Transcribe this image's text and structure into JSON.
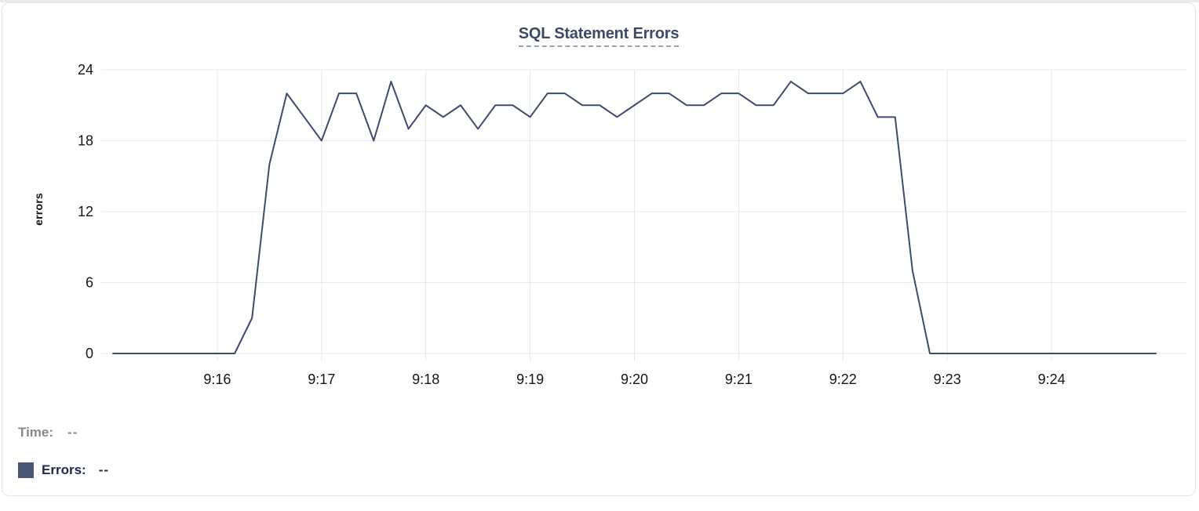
{
  "page": {
    "top_strip_color": "#e9ebee",
    "background": "#ffffff"
  },
  "card": {
    "background": "#ffffff",
    "border_color": "#e2e4e8"
  },
  "header": {
    "title": "SQL Statement Errors",
    "title_color": "#3c4a66",
    "underline_color": "#99a2bb"
  },
  "readout": {
    "time_label": "Time:",
    "time_value": "--",
    "time_color": "#85888d",
    "errors_label": "Errors:",
    "errors_value": "--",
    "errors_color": "#1e2847",
    "swatch_color": "#485571"
  },
  "chart_data": {
    "type": "line",
    "title": "SQL Statement Errors",
    "xlabel": "",
    "ylabel": "errors",
    "ylim": [
      0,
      24
    ],
    "yticks": [
      0,
      6,
      12,
      18,
      24
    ],
    "grid": true,
    "legend_position": "none",
    "line_color": "#3e4c6b",
    "gridline_color": "#e8e8e8",
    "tick_text_color": "#161616",
    "x_start": "9:15:00",
    "x_end": "9:25:00",
    "sample_interval_seconds": 10,
    "xtick_labels": [
      "9:16",
      "9:17",
      "9:18",
      "9:19",
      "9:20",
      "9:21",
      "9:22",
      "9:23",
      "9:24"
    ],
    "series": [
      {
        "name": "Errors",
        "times": [
          "9:15:00",
          "9:15:10",
          "9:15:20",
          "9:15:30",
          "9:15:40",
          "9:15:50",
          "9:16:00",
          "9:16:10",
          "9:16:20",
          "9:16:30",
          "9:16:40",
          "9:16:50",
          "9:17:00",
          "9:17:10",
          "9:17:20",
          "9:17:30",
          "9:17:40",
          "9:17:50",
          "9:18:00",
          "9:18:10",
          "9:18:20",
          "9:18:30",
          "9:18:40",
          "9:18:50",
          "9:19:00",
          "9:19:10",
          "9:19:20",
          "9:19:30",
          "9:19:40",
          "9:19:50",
          "9:20:00",
          "9:20:10",
          "9:20:20",
          "9:20:30",
          "9:20:40",
          "9:20:50",
          "9:21:00",
          "9:21:10",
          "9:21:20",
          "9:21:30",
          "9:21:40",
          "9:21:50",
          "9:22:00",
          "9:22:10",
          "9:22:20",
          "9:22:30",
          "9:22:40",
          "9:22:50",
          "9:23:00",
          "9:23:10",
          "9:23:20",
          "9:23:30",
          "9:23:40",
          "9:23:50",
          "9:24:00",
          "9:24:10",
          "9:24:20",
          "9:24:30",
          "9:24:40",
          "9:24:50",
          "9:25:00"
        ],
        "values": [
          0,
          0,
          0,
          0,
          0,
          0,
          0,
          0,
          3,
          16,
          22,
          20,
          18,
          22,
          22,
          18,
          23,
          19,
          21,
          20,
          21,
          19,
          21,
          21,
          20,
          22,
          22,
          21,
          21,
          20,
          21,
          22,
          22,
          21,
          21,
          22,
          22,
          21,
          21,
          23,
          22,
          22,
          22,
          23,
          20,
          20,
          7,
          0,
          0,
          0,
          0,
          0,
          0,
          0,
          0,
          0,
          0,
          0,
          0,
          0,
          0
        ]
      }
    ]
  }
}
